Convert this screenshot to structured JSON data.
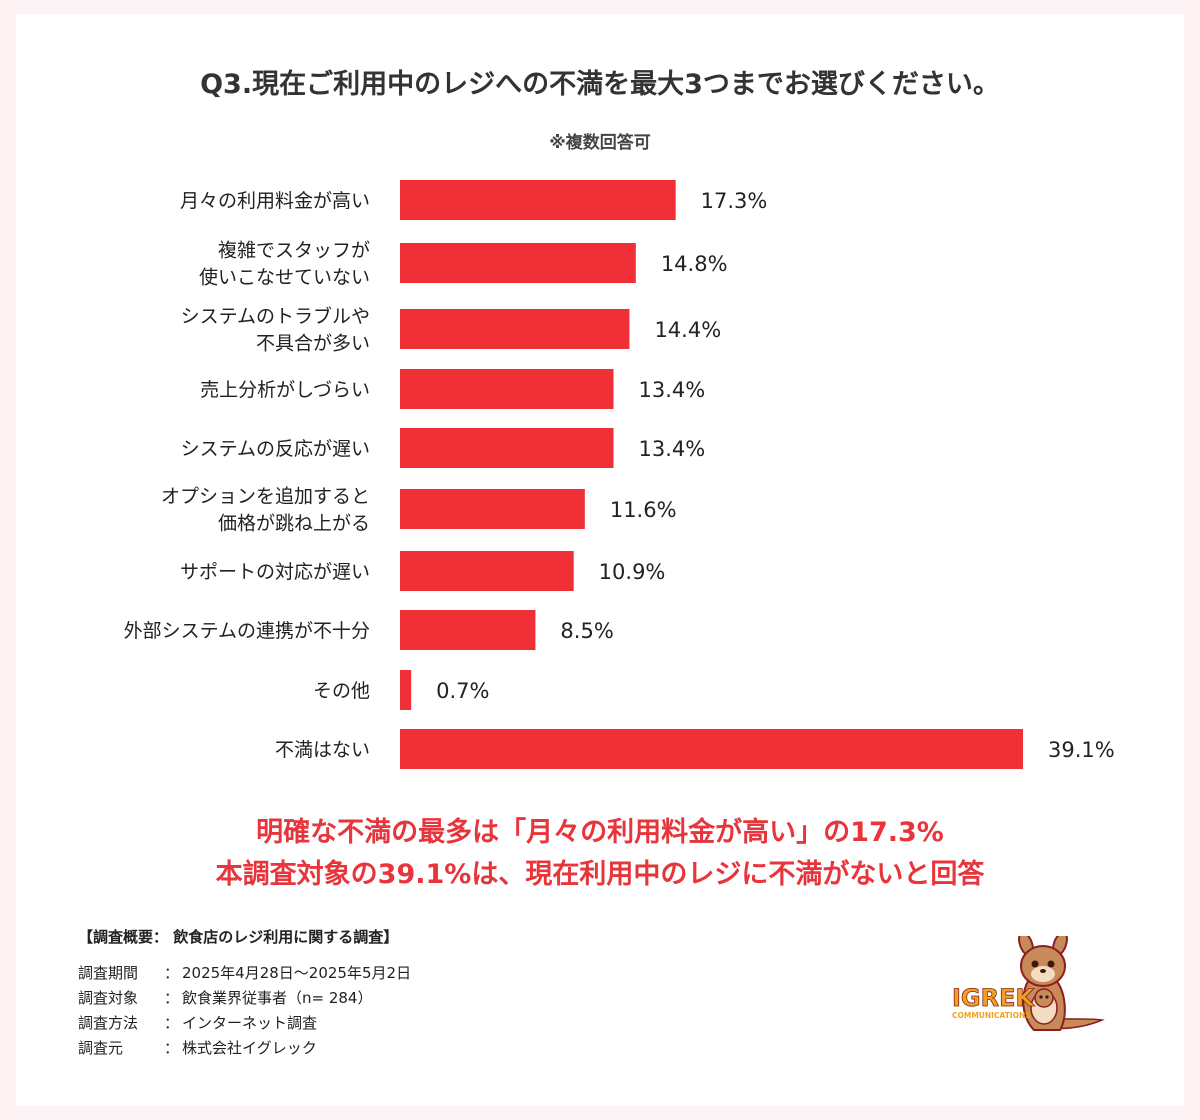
{
  "title": "Q3.現在ご利用中のレジへの不満を最大3つまでお選びください。",
  "note": "※複数回答可",
  "chart_data": {
    "type": "bar",
    "orientation": "horizontal",
    "value_suffix": "%",
    "categories": [
      [
        "月々の利用料金が高い"
      ],
      [
        "複雑でスタッフが",
        "使いこなせていない"
      ],
      [
        "システムのトラブルや",
        "不具合が多い"
      ],
      [
        "売上分析がしづらい"
      ],
      [
        "システムの反応が遅い"
      ],
      [
        "オプションを追加すると",
        "価格が跳ね上がる"
      ],
      [
        "サポートの対応が遅い"
      ],
      [
        "外部システムの連携が不十分"
      ],
      [
        "その他"
      ],
      [
        "不満はない"
      ]
    ],
    "values": [
      17.3,
      14.8,
      14.4,
      13.4,
      13.4,
      11.6,
      10.9,
      8.5,
      0.7,
      39.1
    ],
    "xlim": [
      0,
      39.1
    ],
    "bar_color": "#f03037",
    "grid": false,
    "legend": "none"
  },
  "summary": {
    "line1": "明確な不満の最多は「月々の利用料金が高い」の17.3%",
    "line2": "本調査対象の39.1%は、現在利用中のレジに不満がないと回答",
    "color": "#e8353b"
  },
  "survey": {
    "title": "【調査概要： 飲食店のレジ利用に関する調査】",
    "rows": [
      {
        "key": "調査期間",
        "value": "2025年4月28日〜2025年5月2日"
      },
      {
        "key": "調査対象",
        "value": "飲食業界従事者（n= 284）"
      },
      {
        "key": "調査方法",
        "value": "インターネット調査"
      },
      {
        "key": "調査元",
        "value": "株式会社イグレック"
      }
    ]
  },
  "logo": {
    "brand": "IGREK",
    "sub": "COMMUNICATIONS",
    "icon": "kangaroo-mascot-icon",
    "colors": {
      "text": "#f0a21c",
      "outline": "#8a1f1f",
      "body": "#c98a5a"
    }
  }
}
